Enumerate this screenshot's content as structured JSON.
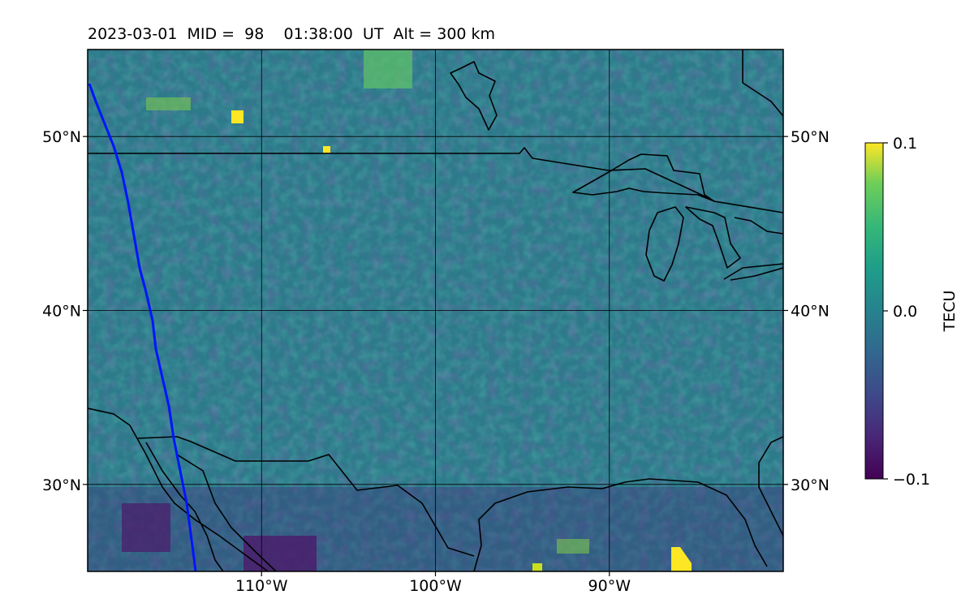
{
  "title": "2023-03-01  MID =  98    01:38:00  UT  Alt = 300 km",
  "map": {
    "lon_range": [
      -120,
      -80
    ],
    "lat_range": [
      25,
      55
    ],
    "lon_ticks": [
      {
        "value": -110,
        "label": "110°W"
      },
      {
        "value": -100,
        "label": "100°W"
      },
      {
        "value": -90,
        "label": "90°W"
      }
    ],
    "lat_ticks": [
      {
        "value": 30,
        "label": "30°N"
      },
      {
        "value": 40,
        "label": "40°N"
      },
      {
        "value": 50,
        "label": "50°N"
      }
    ],
    "grid": true,
    "boundary_color": "#000000",
    "track_color": "#0015ff"
  },
  "colorbar": {
    "label": "TECU",
    "range": [
      -0.1,
      0.1
    ],
    "ticks": [
      {
        "value": 0.1,
        "label": "0.1"
      },
      {
        "value": 0.0,
        "label": "0.0"
      },
      {
        "value": -0.1,
        "label": "−0.1"
      }
    ],
    "colormap": "viridis"
  }
}
